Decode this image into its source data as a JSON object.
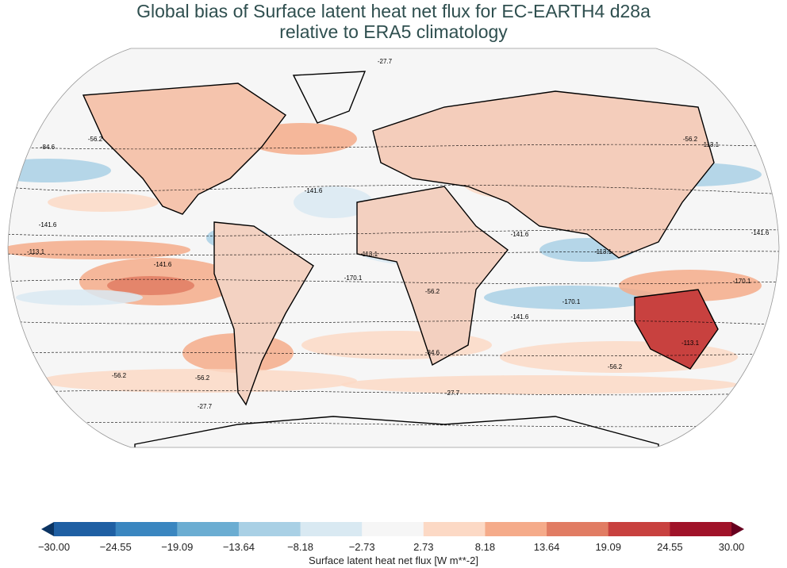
{
  "title": {
    "line1": "Global bias of Surface latent heat net flux for EC-EARTH4 d28a",
    "line2": "relative to ERA5 climatology"
  },
  "map": {
    "projection": "Robinson",
    "contour_labels": [
      "-27.7",
      "-56.2",
      "-84.6",
      "-113.1",
      "-141.6",
      "-170.1"
    ]
  },
  "colorbar": {
    "label": "Surface latent heat net flux [W m**-2]",
    "ticks": [
      "−30.00",
      "−24.55",
      "−19.09",
      "−13.64",
      "−8.18",
      "−2.73",
      "2.73",
      "8.18",
      "13.64",
      "19.09",
      "24.55",
      "30.00"
    ],
    "colors": [
      "#1f5fa3",
      "#3a86c0",
      "#6badd2",
      "#a9d0e5",
      "#d9e9f2",
      "#f6f6f6",
      "#fcd9c5",
      "#f5ab8a",
      "#e17c63",
      "#c8413f",
      "#a01329"
    ],
    "extend_low_color": "#0b3463",
    "extend_high_color": "#67001f"
  }
}
